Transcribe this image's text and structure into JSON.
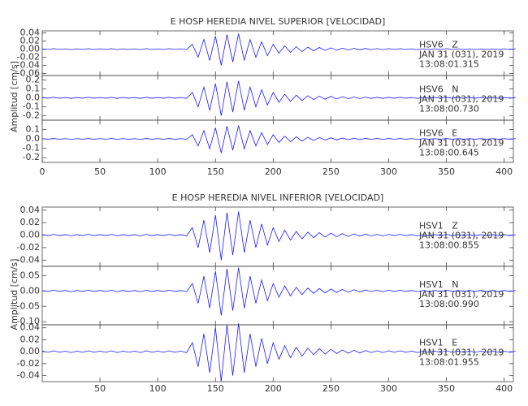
{
  "chart_data": [
    {
      "type": "line",
      "title": "E HOSP HEREDIA NIVEL SUPERIOR [VELOCIDAD]",
      "ylabel": "Amplitud [cm/s]",
      "color": "#1a1aff",
      "xlim": [
        0,
        408
      ],
      "xticks": [
        0,
        50,
        100,
        150,
        200,
        250,
        300,
        350,
        400
      ],
      "x": [
        0,
        5,
        10,
        15,
        20,
        25,
        30,
        35,
        40,
        45,
        50,
        55,
        60,
        65,
        70,
        75,
        80,
        85,
        90,
        95,
        100,
        105,
        110,
        115,
        120,
        125,
        130,
        135,
        140,
        145,
        150,
        155,
        160,
        165,
        170,
        175,
        180,
        185,
        190,
        195,
        200,
        205,
        210,
        215,
        220,
        225,
        230,
        235,
        240,
        245,
        250,
        255,
        260,
        265,
        270,
        275,
        280,
        285,
        290,
        295,
        300,
        305,
        310,
        315,
        320,
        325,
        330,
        335,
        340,
        345,
        350,
        355,
        360,
        365,
        370,
        375,
        380,
        385,
        390,
        395,
        400,
        405,
        410
      ],
      "panels": [
        {
          "station": "HSV6   Z",
          "date": "JAN 31 (031), 2019",
          "time": "13:08:01.315",
          "ylim": [
            -0.065,
            0.045
          ],
          "yticks": [
            0.04,
            0.02,
            {
              "value": 0,
              "label": "0.00"
            },
            -0.02,
            -0.04,
            -0.06
          ],
          "values": [
            0.0008,
            -0.0008,
            0.0012,
            -0.0008,
            0.0008,
            -0.0012,
            0.0008,
            -0.0008,
            0.0012,
            -0.0008,
            0.0008,
            -0.0008,
            0.0012,
            -0.0012,
            0.0008,
            -0.0008,
            0.0008,
            -0.0012,
            0.0012,
            -0.0008,
            0.0008,
            -0.0008,
            0.0012,
            -0.0008,
            0.0008,
            -0.0012,
            0.012,
            -0.02,
            0.024,
            -0.028,
            0.032,
            -0.04,
            0.036,
            -0.032,
            0.038,
            -0.028,
            0.024,
            -0.02,
            0.018,
            -0.016,
            0.012,
            -0.01,
            0.008,
            -0.008,
            0.006,
            -0.006,
            0.0048,
            -0.004,
            0.004,
            -0.0032,
            0.0032,
            -0.0024,
            0.0024,
            -0.002,
            0.002,
            -0.0016,
            0.0016,
            -0.0012,
            0.0012,
            -0.0012,
            0.0012,
            -0.0008,
            0.0012,
            -0.0008,
            0.0008,
            -0.0012,
            0.0008,
            -0.0008,
            0.0008,
            -0.0008,
            0.0012,
            -0.0008,
            0.0008,
            -0.0008,
            0.0008,
            -0.0008,
            0.0008,
            -0.0008,
            0.0008,
            -0.0008,
            0.0008,
            -0.0008,
            0.0008
          ]
        },
        {
          "station": "HSV6   N",
          "date": "JAN 31 (031), 2019",
          "time": "13:08:00.730",
          "ylim": [
            -0.25,
            0.25
          ],
          "yticks": [
            0.2,
            0.1,
            {
              "value": 0,
              "label": "0.0"
            },
            -0.1,
            -0.2
          ],
          "values": [
            0.004,
            -0.004,
            0.006,
            -0.004,
            0.004,
            -0.006,
            0.004,
            -0.004,
            0.006,
            -0.004,
            0.004,
            -0.004,
            0.006,
            -0.006,
            0.004,
            -0.004,
            0.004,
            -0.006,
            0.006,
            -0.004,
            0.004,
            -0.004,
            0.006,
            -0.004,
            0.004,
            -0.006,
            0.06,
            -0.1,
            0.12,
            -0.14,
            0.16,
            -0.2,
            0.18,
            -0.16,
            0.19,
            -0.14,
            0.12,
            -0.1,
            0.09,
            -0.08,
            0.06,
            -0.05,
            0.04,
            -0.04,
            0.03,
            -0.03,
            0.024,
            -0.02,
            0.02,
            -0.016,
            0.016,
            -0.012,
            0.012,
            -0.01,
            0.01,
            -0.008,
            0.008,
            -0.006,
            0.006,
            -0.006,
            0.006,
            -0.004,
            0.006,
            -0.004,
            0.004,
            -0.006,
            0.004,
            -0.004,
            0.004,
            -0.004,
            0.006,
            -0.004,
            0.004,
            -0.004,
            0.004,
            -0.004,
            0.004,
            -0.004,
            0.004,
            -0.004,
            0.004,
            -0.004,
            0.004
          ]
        },
        {
          "station": "HSV6   E",
          "date": "JAN 31 (031), 2019",
          "time": "13:08:00.645",
          "ylim": [
            -0.25,
            0.2
          ],
          "yticks": [
            0.1,
            {
              "value": 0,
              "label": "0.0"
            },
            -0.1,
            -0.2
          ],
          "values": [
            0.003,
            -0.003,
            0.0045,
            -0.003,
            0.003,
            -0.0045,
            0.003,
            -0.003,
            0.0045,
            -0.003,
            0.003,
            -0.003,
            0.0045,
            -0.0045,
            0.003,
            -0.003,
            0.003,
            -0.0045,
            0.0045,
            -0.003,
            0.003,
            -0.003,
            0.0045,
            -0.003,
            0.003,
            -0.0045,
            0.045,
            -0.075,
            0.09,
            -0.105,
            0.12,
            -0.15,
            0.135,
            -0.12,
            0.1425,
            -0.105,
            0.09,
            -0.075,
            0.0675,
            -0.06,
            0.045,
            -0.0375,
            0.03,
            -0.03,
            0.0225,
            -0.0225,
            0.018,
            -0.015,
            0.015,
            -0.012,
            0.012,
            -0.009,
            0.009,
            -0.0075,
            0.0075,
            -0.006,
            0.006,
            -0.0045,
            0.0045,
            -0.0045,
            0.0045,
            -0.003,
            0.0045,
            -0.003,
            0.003,
            -0.0045,
            0.003,
            -0.003,
            0.003,
            -0.003,
            0.0045,
            -0.003,
            0.003,
            -0.003,
            0.003,
            -0.003,
            0.003,
            -0.003,
            0.003,
            -0.003,
            0.003,
            -0.003,
            0.003
          ]
        }
      ]
    },
    {
      "type": "line",
      "title": "E HOSP HEREDIA NIVEL INFERIOR [VELOCIDAD]",
      "ylabel": "Amplitud [cm/s]",
      "color": "#1a1aff",
      "xlim": [
        0,
        408
      ],
      "xticks": [
        50,
        100,
        150,
        200,
        250,
        300,
        350,
        400
      ],
      "x": [
        0,
        5,
        10,
        15,
        20,
        25,
        30,
        35,
        40,
        45,
        50,
        55,
        60,
        65,
        70,
        75,
        80,
        85,
        90,
        95,
        100,
        105,
        110,
        115,
        120,
        125,
        130,
        135,
        140,
        145,
        150,
        155,
        160,
        165,
        170,
        175,
        180,
        185,
        190,
        195,
        200,
        205,
        210,
        215,
        220,
        225,
        230,
        235,
        240,
        245,
        250,
        255,
        260,
        265,
        270,
        275,
        280,
        285,
        290,
        295,
        300,
        305,
        310,
        315,
        320,
        325,
        330,
        335,
        340,
        345,
        350,
        355,
        360,
        365,
        370,
        375,
        380,
        385,
        390,
        395,
        400,
        405,
        410
      ],
      "panels": [
        {
          "station": "HSV1   Z",
          "date": "JAN 31 (031), 2019",
          "time": "13:08:00.855",
          "ylim": [
            -0.05,
            0.045
          ],
          "yticks": [
            0.04,
            0.02,
            {
              "value": 0,
              "label": "0.00"
            },
            -0.02,
            -0.04
          ],
          "values": [
            0.0008,
            -0.0008,
            0.0012,
            -0.0008,
            0.0008,
            -0.0012,
            0.0008,
            -0.0008,
            0.0012,
            -0.0008,
            0.0008,
            -0.0008,
            0.0012,
            -0.0012,
            0.0008,
            -0.0008,
            0.0008,
            -0.0012,
            0.0012,
            -0.0008,
            0.0008,
            -0.0008,
            0.0012,
            -0.0008,
            0.0008,
            -0.0012,
            0.012,
            -0.02,
            0.024,
            -0.028,
            0.032,
            -0.04,
            0.036,
            -0.032,
            0.038,
            -0.028,
            0.024,
            -0.02,
            0.018,
            -0.016,
            0.012,
            -0.01,
            0.008,
            -0.008,
            0.006,
            -0.006,
            0.0048,
            -0.004,
            0.004,
            -0.0032,
            0.0032,
            -0.0024,
            0.0024,
            -0.002,
            0.002,
            -0.0016,
            0.0016,
            -0.0012,
            0.0012,
            -0.0012,
            0.0012,
            -0.0008,
            0.0012,
            -0.0008,
            0.0008,
            -0.0012,
            0.0008,
            -0.0008,
            0.0008,
            -0.0008,
            0.0012,
            -0.0008,
            0.0008,
            -0.0008,
            0.0008,
            -0.0008,
            0.0008,
            -0.0008,
            0.0008,
            -0.0008,
            0.0008,
            -0.0008,
            0.0008
          ]
        },
        {
          "station": "HSV1   N",
          "date": "JAN 31 (031), 2019",
          "time": "13:08:00.990",
          "ylim": [
            -0.11,
            0.08
          ],
          "yticks": [
            0.05,
            {
              "value": 0,
              "label": "0.00"
            },
            -0.05,
            {
              "value": -0.1,
              "label": "-0.10"
            }
          ],
          "values": [
            0.0016,
            -0.0016,
            0.0024,
            -0.0016,
            0.0016,
            -0.0024,
            0.0016,
            -0.0016,
            0.0024,
            -0.0016,
            0.0016,
            -0.0016,
            0.0024,
            -0.0024,
            0.0016,
            -0.0016,
            0.0016,
            -0.0024,
            0.0024,
            -0.0016,
            0.0016,
            -0.0016,
            0.0024,
            -0.0016,
            0.0016,
            -0.0024,
            0.024,
            -0.04,
            0.048,
            -0.056,
            0.064,
            -0.08,
            0.072,
            -0.064,
            0.076,
            -0.056,
            0.048,
            -0.04,
            0.036,
            -0.032,
            0.024,
            -0.02,
            0.016,
            -0.016,
            0.012,
            -0.012,
            0.0096,
            -0.008,
            0.008,
            -0.0064,
            0.0064,
            -0.0048,
            0.0048,
            -0.004,
            0.004,
            -0.0032,
            0.0032,
            -0.0024,
            0.0024,
            -0.0024,
            0.0024,
            -0.0016,
            0.0024,
            -0.0016,
            0.0016,
            -0.0024,
            0.0016,
            -0.0016,
            0.0016,
            -0.0016,
            0.0024,
            -0.0016,
            0.0016,
            -0.0016,
            0.0016,
            -0.0016,
            0.0016,
            -0.0016,
            0.0016,
            -0.0016,
            0.0016,
            -0.0016,
            0.0016
          ]
        },
        {
          "station": "HSV1   E",
          "date": "JAN 31 (031), 2019",
          "time": "13:08:01.955",
          "ylim": [
            -0.05,
            0.045
          ],
          "yticks": [
            0.04,
            0.02,
            {
              "value": 0,
              "label": "0.00"
            },
            -0.02,
            -0.04
          ],
          "values": [
            0.001,
            -0.001,
            0.0015,
            -0.001,
            0.001,
            -0.0015,
            0.001,
            -0.001,
            0.0015,
            -0.001,
            0.001,
            -0.001,
            0.0015,
            -0.0015,
            0.001,
            -0.001,
            0.001,
            -0.0015,
            0.0015,
            -0.001,
            0.001,
            -0.001,
            0.0015,
            -0.001,
            0.001,
            -0.0015,
            0.015,
            -0.025,
            0.03,
            -0.035,
            0.04,
            -0.05,
            0.045,
            -0.04,
            0.0475,
            -0.035,
            0.03,
            -0.025,
            0.0225,
            -0.02,
            0.015,
            -0.0125,
            0.01,
            -0.01,
            0.0075,
            -0.0075,
            0.006,
            -0.005,
            0.005,
            -0.004,
            0.004,
            -0.003,
            0.003,
            -0.0025,
            0.0025,
            -0.002,
            0.002,
            -0.0015,
            0.0015,
            -0.0015,
            0.0015,
            -0.001,
            0.0015,
            -0.001,
            0.001,
            -0.0015,
            0.001,
            -0.001,
            0.001,
            -0.001,
            0.0015,
            -0.001,
            0.001,
            -0.001,
            0.001,
            -0.001,
            0.001,
            -0.001,
            0.001,
            -0.001,
            0.001,
            -0.001,
            0.001
          ]
        }
      ]
    }
  ]
}
